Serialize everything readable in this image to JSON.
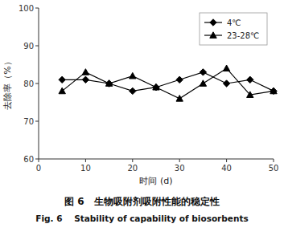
{
  "chart_data": {
    "type": "line",
    "title": "图 6   生物吸附剂吸附性能的稳定性",
    "subtitle": "Fig. 6    Stability of capability of biosorbents",
    "xlabel": "时间 (d)",
    "ylabel": "去除率（%）",
    "x": [
      5,
      10,
      15,
      20,
      25,
      30,
      35,
      40,
      45,
      50
    ],
    "series": [
      {
        "name": "4℃",
        "color": "black",
        "marker": "diamond",
        "values": [
          81,
          81,
          80,
          78,
          79,
          81,
          83,
          80,
          81,
          78
        ]
      },
      {
        "name": "23-28℃",
        "color": "black",
        "marker": "triangle",
        "values": [
          78,
          83,
          80,
          82,
          79,
          76,
          80,
          84,
          77,
          78
        ]
      }
    ],
    "xlim": [
      0,
      50
    ],
    "ylim": [
      60,
      100
    ],
    "xticks": [
      0,
      10,
      20,
      30,
      40,
      50
    ],
    "yticks": [
      60,
      70,
      80,
      90,
      100
    ],
    "legend": "upper right",
    "grid": false
  }
}
